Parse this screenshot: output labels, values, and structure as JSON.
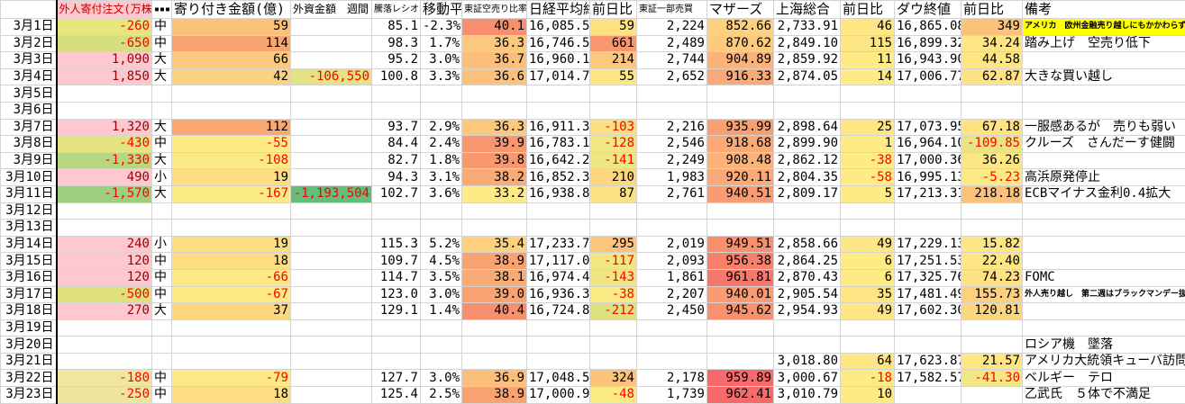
{
  "header": [
    "",
    "外人寄付注文(万株)",
    "▪▪▪",
    "寄り付き金額(億)",
    "外資金額　週間",
    "騰落レシオ",
    "移動平均",
    "東証空売り比率",
    "日経平均終値",
    "前日比",
    "東証一部売買",
    "マザーズ",
    "上海総合",
    "前日比",
    "ダウ終値",
    "前日比",
    "備考"
  ],
  "header_colors": {
    "foreign_bg": "#ffc7ce",
    "foreign_text": "#c00000"
  },
  "rows": [
    {
      "v": [
        "3月1日",
        "-260",
        "中",
        "59",
        "",
        "85.1",
        "-2.3%",
        "40.1",
        "16,085.51",
        "59",
        "2,224",
        "852.66",
        "2,733.91",
        "46",
        "16,865.08",
        "349",
        "アメリカ　欧州金融売り越しにもかかわらず"
      ],
      "bg": {
        "1": "#e8e47e",
        "3": "#fcc27b",
        "7": "#f8906f",
        "9": "#fde283",
        "11": "#fdd17f",
        "13": "#ffe684",
        "15": "#fcc27b",
        "16": "#ffff00"
      }
    },
    {
      "v": [
        "3月2日",
        "-650",
        "中",
        "114",
        "",
        "98.3",
        "1.7%",
        "36.3",
        "16,746.55",
        "661",
        "2,489",
        "870.62",
        "2,849.10",
        "115",
        "16,899.32",
        "34.24",
        "踏み上げ　空売り低下"
      ],
      "bg": {
        "1": "#d6df7f",
        "3": "#f9a572",
        "7": "#fcc87d",
        "9": "#f8966f",
        "11": "#fccb7d",
        "13": "#ffe684",
        "15": "#ffe684"
      }
    },
    {
      "v": [
        "3月3日",
        "1,090",
        "大",
        "66",
        "",
        "95.2",
        "3.0%",
        "36.7",
        "16,960.16",
        "214",
        "2,744",
        "904.89",
        "2,859.92",
        "11",
        "16,943.90",
        "44.58",
        ""
      ],
      "bg": {
        "1": "#ffc7ce",
        "3": "#fcc87d",
        "7": "#fbbe7b",
        "9": "#fcc87d",
        "11": "#fbb379",
        "13": "#ffeb84",
        "15": "#ffe684"
      }
    },
    {
      "v": [
        "3月4日",
        "1,850",
        "大",
        "42",
        "-106,550",
        "100.8",
        "3.3%",
        "36.6",
        "17,014.78",
        "55",
        "2,652",
        "916.33",
        "2,874.05",
        "14",
        "17,006.77",
        "62.87",
        "大きな買い越し"
      ],
      "bg": {
        "1": "#ffc7ce",
        "3": "#fdd27f",
        "4": "#e5e283",
        "7": "#fcc27b",
        "9": "#ffe684",
        "11": "#fba976",
        "13": "#ffeb84",
        "15": "#ffe283"
      }
    },
    {
      "v": [
        "3月5日",
        "",
        "",
        "",
        "",
        "",
        "",
        "",
        "",
        "",
        "",
        "",
        "",
        "",
        "",
        "",
        ""
      ],
      "bg": {}
    },
    {
      "v": [
        "3月6日",
        "",
        "",
        "",
        "",
        "",
        "",
        "",
        "",
        "",
        "",
        "",
        "",
        "",
        "",
        "",
        ""
      ],
      "bg": {}
    },
    {
      "v": [
        "3月7日",
        "1,320",
        "大",
        "112",
        "",
        "93.7",
        "2.9%",
        "36.3",
        "16,911.32",
        "-103",
        "2,216",
        "935.99",
        "2,898.64",
        "25",
        "17,073.95",
        "67.18",
        "一服感あるが　売りも弱い"
      ],
      "bg": {
        "1": "#ffc7ce",
        "3": "#f9a873",
        "7": "#fcc87d",
        "9": "#fcde83",
        "11": "#f9a073",
        "13": "#ffe684",
        "15": "#ffe283"
      }
    },
    {
      "v": [
        "3月8日",
        "-430",
        "中",
        "-55",
        "",
        "84.4",
        "2.4%",
        "39.9",
        "16,783.15",
        "-128",
        "2,546",
        "918.68",
        "2,899.90",
        "1",
        "16,964.10",
        "-109.85",
        "クルーズ　さんだーす健闘"
      ],
      "bg": {
        "1": "#e4e37f",
        "3": "#ffeb84",
        "7": "#f8966f",
        "9": "#f2e783",
        "11": "#fbaa76",
        "13": "#ffeb84",
        "15": "#e9e583"
      }
    },
    {
      "v": [
        "3月9日",
        "-1,330",
        "大",
        "-108",
        "",
        "82.7",
        "1.8%",
        "39.8",
        "16,642.20",
        "-141",
        "2,249",
        "908.48",
        "2,862.12",
        "-38",
        "17,000.36",
        "36.26",
        ""
      ],
      "bg": {
        "1": "#b5d77f",
        "3": "#fcea84",
        "7": "#f8986f",
        "9": "#eee683",
        "11": "#fbb379",
        "13": "#ffeb84",
        "15": "#ffe684"
      }
    },
    {
      "v": [
        "3月10日",
        "490",
        "小",
        "19",
        "",
        "94.3",
        "3.1%",
        "38.2",
        "16,852.35",
        "210",
        "1,983",
        "920.11",
        "2,804.35",
        "-58",
        "16,995.13",
        "-5.23",
        "高浜原発停止"
      ],
      "bg": {
        "1": "#ffc7ce",
        "3": "#fddd82",
        "7": "#f9ab75",
        "9": "#fdd680",
        "11": "#fba977",
        "13": "#ffeb84",
        "15": "#fbe984"
      }
    },
    {
      "v": [
        "3月11日",
        "-1,570",
        "大",
        "-167",
        "-1,193,504",
        "102.7",
        "3.6%",
        "33.2",
        "16,938.87",
        "87",
        "2,761",
        "940.51",
        "2,809.17",
        "5",
        "17,213.31",
        "218.18",
        "ECBマイナス金利0.4拡大"
      ],
      "bg": {
        "1": "#9ecf7e",
        "3": "#fcea84",
        "4": "#63be7b",
        "7": "#ffeb84",
        "9": "#fde283",
        "11": "#f99c71",
        "13": "#ffeb84",
        "15": "#fcc27b"
      }
    },
    {
      "v": [
        "3月12日",
        "",
        "",
        "",
        "",
        "",
        "",
        "",
        "",
        "",
        "",
        "",
        "",
        "",
        "",
        "",
        ""
      ],
      "bg": {}
    },
    {
      "v": [
        "3月13日",
        "",
        "",
        "",
        "",
        "",
        "",
        "",
        "",
        "",
        "",
        "",
        "",
        "",
        "",
        "",
        ""
      ],
      "bg": {}
    },
    {
      "v": [
        "3月14日",
        "240",
        "小",
        "19",
        "",
        "115.3",
        "5.2%",
        "35.4",
        "17,233.75",
        "295",
        "2,019",
        "949.51",
        "2,858.66",
        "49",
        "17,229.13",
        "15.82",
        ""
      ],
      "bg": {
        "1": "#ffc7ce",
        "3": "#fddd82",
        "7": "#fdd17f",
        "9": "#fcc47c",
        "11": "#f8906f",
        "13": "#ffe684",
        "15": "#ffe684"
      }
    },
    {
      "v": [
        "3月15日",
        "120",
        "中",
        "18",
        "",
        "109.7",
        "4.5%",
        "38.9",
        "17,117.07",
        "-117",
        "2,093",
        "956.38",
        "2,864.25",
        "6",
        "17,251.53",
        "22.40",
        ""
      ],
      "bg": {
        "1": "#ffc7ce",
        "3": "#fddd82",
        "7": "#f9a372",
        "9": "#f3e783",
        "11": "#f8816c",
        "13": "#ffeb84",
        "15": "#ffe684"
      }
    },
    {
      "v": [
        "3月16日",
        "120",
        "中",
        "-66",
        "",
        "114.7",
        "3.5%",
        "38.1",
        "16,974.45",
        "-143",
        "1,861",
        "961.81",
        "2,870.43",
        "6",
        "17,325.76",
        "74.23",
        "FOMC"
      ],
      "bg": {
        "1": "#ffc7ce",
        "3": "#fdea84",
        "7": "#f9ab75",
        "9": "#efe683",
        "11": "#f8776b",
        "13": "#ffeb84",
        "15": "#ffe283"
      }
    },
    {
      "v": [
        "3月17日",
        "-500",
        "中",
        "-67",
        "",
        "123.0",
        "3.0%",
        "39.0",
        "16,936.38",
        "-38",
        "2,207",
        "940.01",
        "2,905.54",
        "35",
        "17,481.49",
        "155.73",
        "外人売り越し　第二週はブラックマンデー抜く"
      ],
      "bg": {
        "1": "#dfe17f",
        "3": "#fdea84",
        "7": "#f9a372",
        "9": "#fbe984",
        "11": "#f99c71",
        "13": "#ffe684",
        "15": "#fdcf7f"
      }
    },
    {
      "v": [
        "3月18日",
        "270",
        "大",
        "37",
        "",
        "129.1",
        "1.4%",
        "40.4",
        "16,724.81",
        "-212",
        "2,450",
        "945.62",
        "2,954.93",
        "49",
        "17,602.30",
        "120.81",
        ""
      ],
      "bg": {
        "1": "#ffc7ce",
        "3": "#fdd680",
        "7": "#f8906f",
        "9": "#dfe17f",
        "11": "#f8916f",
        "13": "#ffe684",
        "15": "#fdd680"
      }
    },
    {
      "v": [
        "3月19日",
        "",
        "",
        "",
        "",
        "",
        "",
        "",
        "",
        "",
        "",
        "",
        "",
        "",
        "",
        "",
        ""
      ],
      "bg": {}
    },
    {
      "v": [
        "3月20日",
        "",
        "",
        "",
        "",
        "",
        "",
        "",
        "",
        "",
        "",
        "",
        "",
        "",
        "",
        "",
        "ロシア機　墜落"
      ],
      "bg": {}
    },
    {
      "v": [
        "3月21日",
        "",
        "",
        "",
        "",
        "",
        "",
        "",
        "",
        "",
        "",
        "",
        "3,018.80",
        "64",
        "17,623.87",
        "21.57",
        "アメリカ大統領キューバ訪問"
      ],
      "bg": {
        "13": "#ffe684",
        "15": "#ffe684"
      }
    },
    {
      "v": [
        "3月22日",
        "-180",
        "中",
        "-79",
        "",
        "127.7",
        "3.0%",
        "36.9",
        "17,048.55",
        "324",
        "2,178",
        "959.89",
        "3,000.67",
        "-18",
        "17,582.57",
        "-41.30",
        "ベルギー　テロ"
      ],
      "bg": {
        "1": "#f0e6a0",
        "3": "#fdea84",
        "7": "#fbbe7b",
        "9": "#fcc37c",
        "11": "#f8696b",
        "13": "#ffeb84",
        "15": "#f3e783"
      }
    },
    {
      "v": [
        "3月23日",
        "-250",
        "中",
        "18",
        "",
        "125.4",
        "2.5%",
        "38.9",
        "17,000.98",
        "-48",
        "1,739",
        "962.41",
        "3,010.79",
        "10",
        "",
        "",
        "乙武氏　５体で不満足"
      ],
      "bg": {
        "1": "#eee69f",
        "3": "#fddd82",
        "7": "#f9a372",
        "9": "#fbe984",
        "11": "#f8696b",
        "13": "#ffeb84"
      }
    }
  ]
}
